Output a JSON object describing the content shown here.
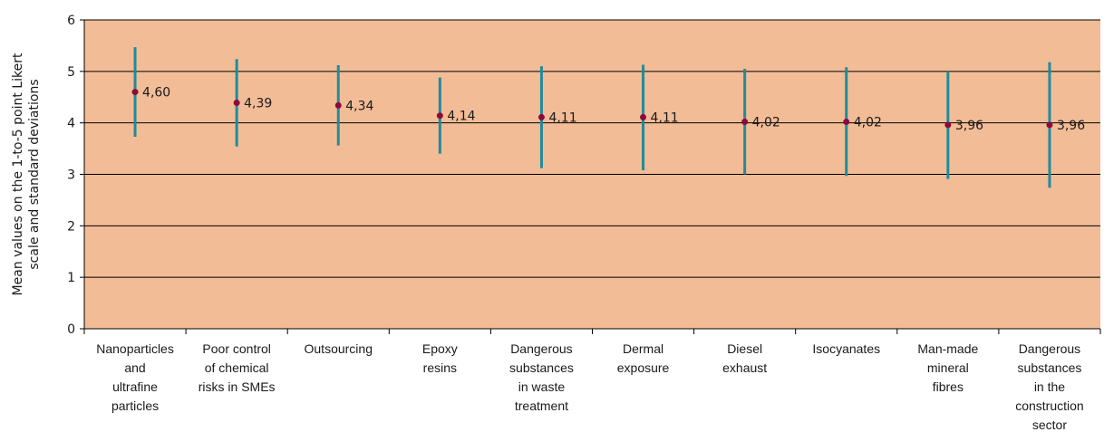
{
  "chart_data": {
    "type": "scatter",
    "title": "",
    "xlabel": "",
    "ylabel": [
      "Mean values on the 1-to-5 point Likert",
      "scale and standard deviations"
    ],
    "ylim": [
      0,
      6
    ],
    "yticks": [
      0,
      1,
      2,
      3,
      4,
      5,
      6
    ],
    "grid": true,
    "categories": [
      [
        "Nanoparticles",
        "and",
        "ultrafine",
        "particles"
      ],
      [
        "Poor control",
        "of chemical",
        "risks in SMEs"
      ],
      [
        "Outsourcing"
      ],
      [
        "Epoxy",
        "resins"
      ],
      [
        "Dangerous",
        "substances",
        "in waste",
        "treatment"
      ],
      [
        "Dermal",
        "exposure"
      ],
      [
        "Diesel",
        "exhaust"
      ],
      [
        "Isocyanates"
      ],
      [
        "Man-made",
        "mineral",
        "fibres"
      ],
      [
        "Dangerous",
        "substances",
        "in the",
        "construction",
        "sector"
      ]
    ],
    "values": [
      4.6,
      4.39,
      4.34,
      4.14,
      4.11,
      4.11,
      4.02,
      4.02,
      3.96,
      3.96
    ],
    "value_labels": [
      "4,60",
      "4,39",
      "4,34",
      "4,14",
      "4,11",
      "4,11",
      "4,02",
      "4,02",
      "3,96",
      "3,96"
    ],
    "error_low": [
      3.73,
      3.54,
      3.56,
      3.4,
      3.12,
      3.08,
      3.0,
      2.97,
      2.91,
      2.74
    ],
    "error_high": [
      5.47,
      5.24,
      5.12,
      4.88,
      5.1,
      5.13,
      5.05,
      5.08,
      5.0,
      5.18
    ],
    "colors": {
      "plot_background": "#F2BC97",
      "error_bar": "#1F8C9A",
      "marker": "#8B0A3A",
      "grid": "#000000"
    }
  }
}
